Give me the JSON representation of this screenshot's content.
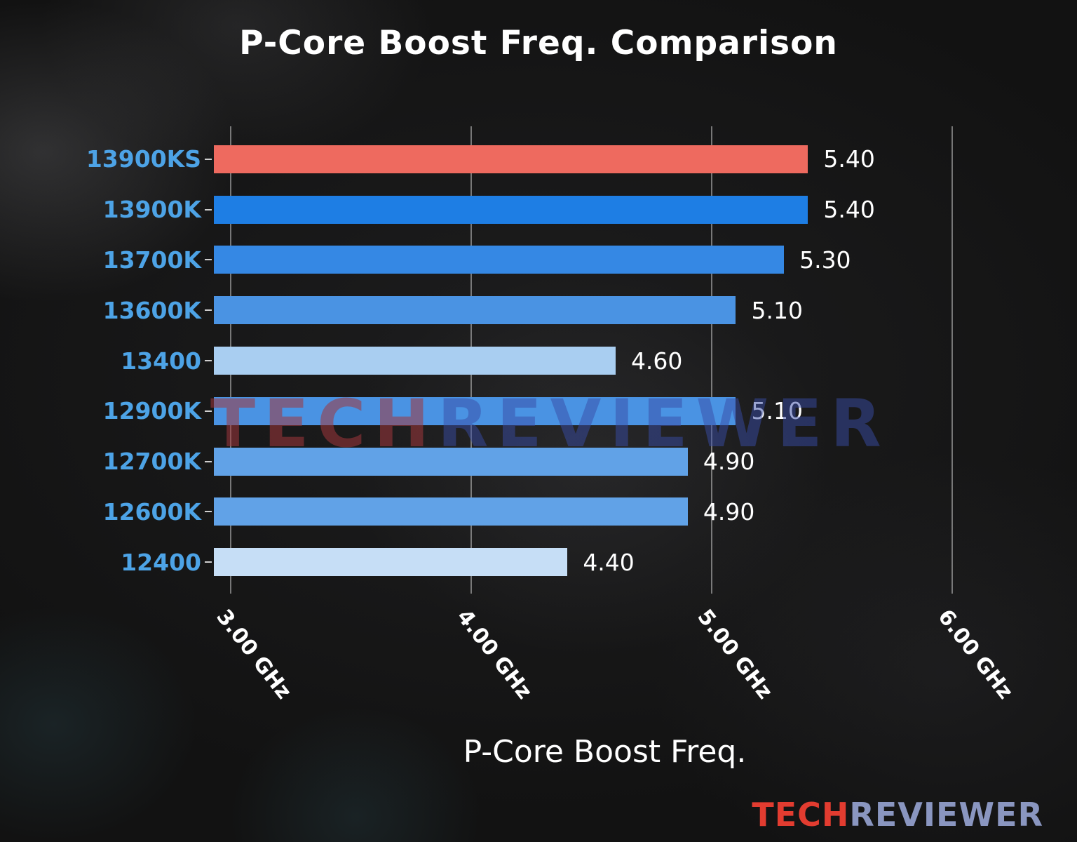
{
  "chart_data": {
    "type": "bar",
    "orientation": "horizontal",
    "title": "P-Core Boost Freq. Comparison",
    "xlabel": "P-Core Boost Freq.",
    "categories": [
      "13900KS",
      "13900K",
      "13700K",
      "13600K",
      "13400",
      "12900K",
      "12700K",
      "12600K",
      "12400"
    ],
    "values": [
      5.4,
      5.4,
      5.3,
      5.1,
      4.6,
      5.1,
      4.9,
      4.9,
      4.4
    ],
    "value_labels": [
      "5.40",
      "5.40",
      "5.30",
      "5.10",
      "4.60",
      "5.10",
      "4.90",
      "4.90",
      "4.40"
    ],
    "unit": "GHz",
    "bar_colors": [
      "#ee6a5f",
      "#1e7ee4",
      "#3588e4",
      "#4a93e3",
      "#a9cef1",
      "#4a93e3",
      "#61a2e7",
      "#61a2e7",
      "#c6def6"
    ],
    "highlight_color": "#ee6a5f",
    "category_label_color": "#4da3e6",
    "x_ticks": [
      {
        "value": 3,
        "label": "3.00 GHz"
      },
      {
        "value": 4,
        "label": "4.00 GHz"
      },
      {
        "value": 5,
        "label": "5.00 GHz"
      },
      {
        "value": 6,
        "label": "6.00 GHz"
      }
    ],
    "xlim": [
      2.93,
      6.18
    ],
    "grid": true,
    "legend_position": "none"
  },
  "watermark": {
    "part1": "TECH",
    "part2": "REVIEWER"
  },
  "logo": {
    "part1": "TECH",
    "part2": "REVIEWER"
  }
}
